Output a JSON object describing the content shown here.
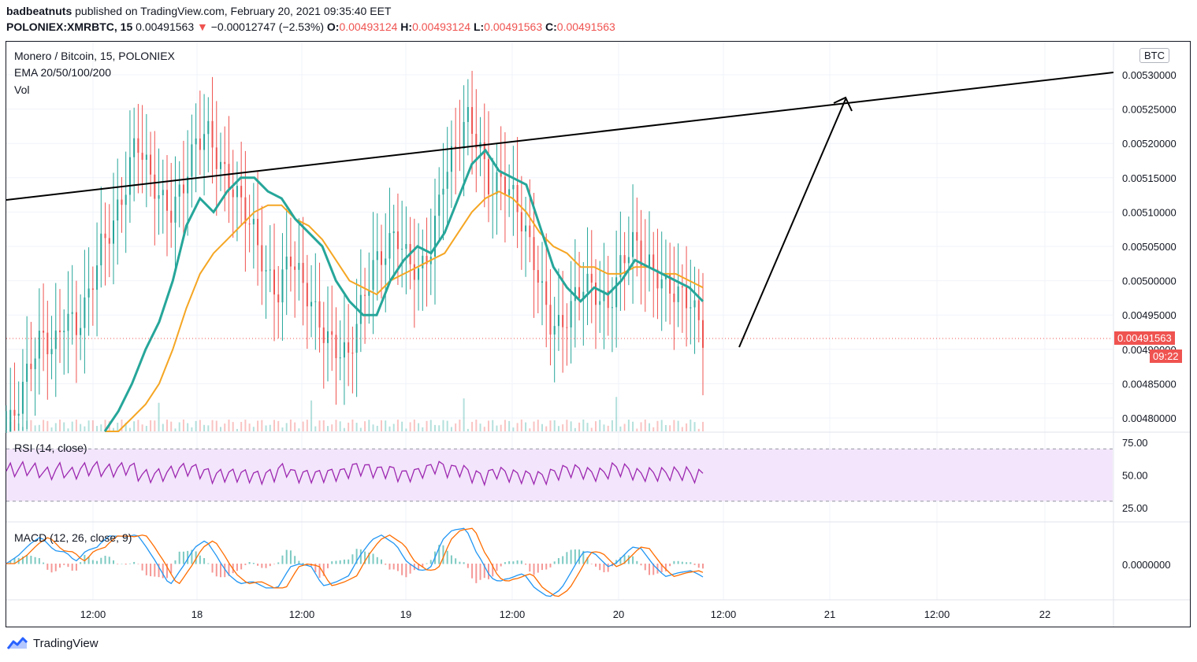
{
  "header": {
    "publisher": "badbeatnuts",
    "published_text": "published on TradingView.com, February 20, 2021 09:35:40 EET",
    "symbol": "POLONIEX:XMRBTC, 15",
    "last": "0.00491563",
    "change": "−0.00012747 (−2.53%)",
    "o_label": "O:",
    "o": "0.00493124",
    "h_label": "H:",
    "h": "0.00493124",
    "l_label": "L:",
    "l": "0.00491563",
    "c_label": "C:",
    "c": "0.00491563"
  },
  "legend": {
    "title": "Monero / Bitcoin, 15, POLONIEX",
    "ema": "EMA 20/50/100/200",
    "vol": "Vol",
    "rsi": "RSI (14, close)",
    "macd": "MACD (12, 26, close, 9)"
  },
  "price_axis": {
    "currency": "BTC",
    "ticks": [
      "0.00530000",
      "0.00525000",
      "0.00520000",
      "0.00515000",
      "0.00510000",
      "0.00505000",
      "0.00500000",
      "0.00495000",
      "0.00490000",
      "0.00485000",
      "0.00480000"
    ],
    "last_price": "0.00491563",
    "countdown": "09:22"
  },
  "rsi_axis": {
    "ticks": [
      "75.00",
      "50.00",
      "25.00"
    ]
  },
  "macd_axis": {
    "ticks": [
      "0.0000000"
    ]
  },
  "time_axis": {
    "ticks": [
      "12:00",
      "18",
      "12:00",
      "19",
      "12:00",
      "20",
      "12:00",
      "21",
      "12:00",
      "22"
    ]
  },
  "footer": {
    "brand": "TradingView"
  },
  "colors": {
    "up": "#26a69a",
    "down": "#ef5350",
    "ema20": "#26a69a",
    "ema50": "#f5a623",
    "rsi": "#9c27b0",
    "macd": "#2196f3",
    "signal": "#ff6d00",
    "drawing": "#000000"
  },
  "chart_data": {
    "type": "line",
    "x_start": "2021-02-17 05:00",
    "x_end": "2021-02-20 09:35",
    "ylim": [
      0.00478,
      0.00531
    ],
    "close": [
      0.00478,
      0.00482,
      0.00488,
      0.00492,
      0.0049,
      0.00495,
      0.00493,
      0.00498,
      0.00505,
      0.00508,
      0.00513,
      0.00521,
      0.00516,
      0.00512,
      0.0051,
      0.00514,
      0.0052,
      0.00522,
      0.00517,
      0.00514,
      0.00511,
      0.00507,
      0.00501,
      0.00498,
      0.00504,
      0.005,
      0.00496,
      0.00492,
      0.0049,
      0.00489,
      0.00496,
      0.00502,
      0.00504,
      0.00507,
      0.00503,
      0.00501,
      0.00505,
      0.00515,
      0.00519,
      0.00524,
      0.0052,
      0.00513,
      0.00515,
      0.00512,
      0.00507,
      0.00501,
      0.00494,
      0.00493,
      0.00497,
      0.005,
      0.00498,
      0.00496,
      0.00502,
      0.00506,
      0.00503,
      0.00501,
      0.00499,
      0.00498,
      0.00497,
      0.00492
    ],
    "ema20": [
      0.00478,
      0.00481,
      0.00485,
      0.0049,
      0.00494,
      0.005,
      0.00508,
      0.00512,
      0.0051,
      0.00513,
      0.00515,
      0.00515,
      0.00513,
      0.00512,
      0.00509,
      0.00507,
      0.00505,
      0.005,
      0.00497,
      0.00495,
      0.00495,
      0.005,
      0.00503,
      0.00505,
      0.00504,
      0.00507,
      0.00512,
      0.00517,
      0.00519,
      0.00516,
      0.00515,
      0.00514,
      0.00508,
      0.00502,
      0.00499,
      0.00497,
      0.00499,
      0.00498,
      0.005,
      0.00503,
      0.00502,
      0.00501,
      0.005,
      0.00499,
      0.00497
    ],
    "ema50": [
      0.00476,
      0.00478,
      0.0048,
      0.00482,
      0.00485,
      0.0049,
      0.00496,
      0.00501,
      0.00504,
      0.00506,
      0.00508,
      0.0051,
      0.00511,
      0.00511,
      0.00509,
      0.00508,
      0.00506,
      0.00503,
      0.005,
      0.00499,
      0.00498,
      0.005,
      0.00501,
      0.00502,
      0.00503,
      0.00504,
      0.00507,
      0.0051,
      0.00512,
      0.00513,
      0.00512,
      0.0051,
      0.00507,
      0.00505,
      0.00504,
      0.00502,
      0.00502,
      0.00501,
      0.00501,
      0.00502,
      0.00502,
      0.00501,
      0.00501,
      0.005,
      0.00499
    ]
  }
}
